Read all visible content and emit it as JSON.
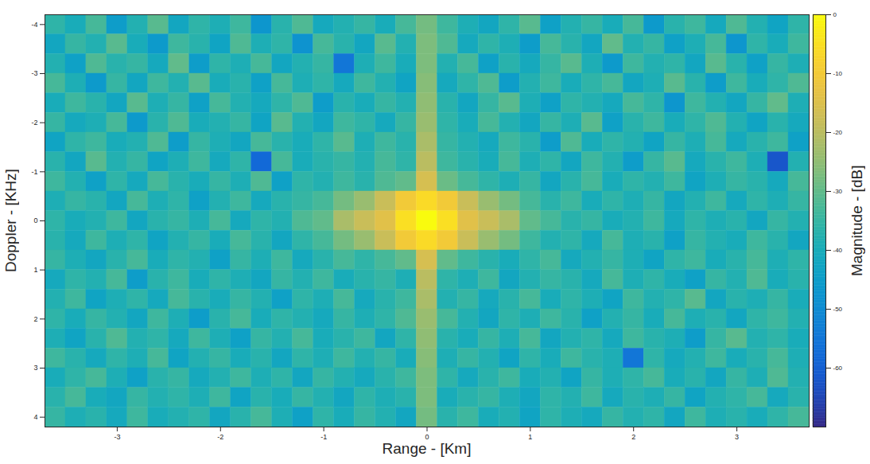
{
  "chart_data": {
    "type": "heatmap",
    "xlabel": "Range - [Km]",
    "ylabel": "Doppler - [KHz]",
    "x": [
      -3.6,
      -3.4,
      -3.2,
      -3.0,
      -2.8,
      -2.6,
      -2.4,
      -2.2,
      -2.0,
      -1.8,
      -1.6,
      -1.4,
      -1.2,
      -1.0,
      -0.8,
      -0.6,
      -0.4,
      -0.2,
      0,
      0.2,
      0.4,
      0.6,
      0.8,
      1.0,
      1.2,
      1.4,
      1.6,
      1.8,
      2.0,
      2.2,
      2.4,
      2.6,
      2.8,
      3.0,
      3.2,
      3.4,
      3.6
    ],
    "y": [
      -4,
      -3.6,
      -3.2,
      -2.8,
      -2.4,
      -2,
      -1.6,
      -1.2,
      -0.8,
      -0.4,
      0,
      0.4,
      0.8,
      1.2,
      1.6,
      2,
      2.4,
      2.8,
      3.2,
      3.6,
      4
    ],
    "z": [
      [
        -36,
        -40,
        -33,
        -45,
        -38,
        -31,
        -42,
        -36,
        -39,
        -34,
        -47,
        -37,
        -32,
        -41,
        -38,
        -35,
        -40,
        -33,
        -28,
        -34,
        -39,
        -42,
        -36,
        -31,
        -44,
        -38,
        -35,
        -40,
        -33,
        -46,
        -37,
        -34,
        -41,
        -32,
        -38,
        -43,
        -36
      ],
      [
        -42,
        -35,
        -38,
        -31,
        -40,
        -46,
        -34,
        -37,
        -43,
        -32,
        -39,
        -36,
        -48,
        -33,
        -37,
        -42,
        -31,
        -38,
        -27,
        -32,
        -41,
        -36,
        -39,
        -45,
        -33,
        -37,
        -42,
        -30,
        -38,
        -35,
        -44,
        -39,
        -33,
        -47,
        -36,
        -40,
        -34
      ],
      [
        -38,
        -44,
        -32,
        -37,
        -35,
        -41,
        -30,
        -45,
        -36,
        -39,
        -33,
        -42,
        -38,
        -35,
        -55,
        -39,
        -34,
        -40,
        -27,
        -38,
        -33,
        -44,
        -37,
        -41,
        -35,
        -31,
        -39,
        -46,
        -34,
        -38,
        -36,
        -42,
        -31,
        -37,
        -44,
        -35,
        -39
      ],
      [
        -33,
        -39,
        -46,
        -35,
        -42,
        -34,
        -38,
        -31,
        -40,
        -37,
        -44,
        -33,
        -39,
        -36,
        -41,
        -34,
        -38,
        -43,
        -26,
        -41,
        -36,
        -32,
        -45,
        -38,
        -34,
        -40,
        -36,
        -33,
        -42,
        -39,
        -31,
        -37,
        -45,
        -34,
        -40,
        -36,
        -32
      ],
      [
        -40,
        -34,
        -37,
        -42,
        -31,
        -39,
        -35,
        -44,
        -33,
        -38,
        -41,
        -36,
        -32,
        -45,
        -37,
        -40,
        -35,
        -38,
        -25,
        -37,
        -42,
        -35,
        -31,
        -39,
        -44,
        -36,
        -38,
        -41,
        -33,
        -36,
        -47,
        -34,
        -38,
        -42,
        -35,
        -30,
        -39
      ],
      [
        -35,
        -41,
        -39,
        -33,
        -46,
        -37,
        -32,
        -40,
        -38,
        -35,
        -43,
        -31,
        -38,
        -42,
        -34,
        -36,
        -41,
        -35,
        -24,
        -36,
        -40,
        -33,
        -38,
        -42,
        -35,
        -39,
        -31,
        -44,
        -37,
        -34,
        -40,
        -36,
        -32,
        -38,
        -43,
        -37,
        -41
      ],
      [
        -43,
        -36,
        -34,
        -40,
        -38,
        -32,
        -45,
        -35,
        -39,
        -42,
        -33,
        -37,
        -40,
        -36,
        -31,
        -39,
        -34,
        -37,
        -22,
        -35,
        -38,
        -41,
        -34,
        -37,
        -45,
        -32,
        -40,
        -36,
        -38,
        -43,
        -35,
        -39,
        -33,
        -41,
        -37,
        -34,
        -44
      ],
      [
        -37,
        -42,
        -31,
        -38,
        -35,
        -43,
        -39,
        -34,
        -41,
        -36,
        -58,
        -33,
        -40,
        -37,
        -35,
        -38,
        -33,
        -36,
        -20,
        -34,
        -37,
        -40,
        -33,
        -39,
        -36,
        -42,
        -34,
        -38,
        -45,
        -35,
        -31,
        -41,
        -37,
        -34,
        -39,
        -62,
        -38
      ],
      [
        -34,
        -38,
        -44,
        -36,
        -41,
        -33,
        -37,
        -40,
        -35,
        -39,
        -32,
        -44,
        -36,
        -38,
        -34,
        -37,
        -32,
        -30,
        -16,
        -29,
        -33,
        -36,
        -39,
        -35,
        -42,
        -37,
        -33,
        -40,
        -36,
        -38,
        -34,
        -43,
        -39,
        -35,
        -37,
        -41,
        -33
      ],
      [
        -39,
        -35,
        -37,
        -42,
        -33,
        -39,
        -36,
        -44,
        -38,
        -34,
        -41,
        -37,
        -35,
        -33,
        -28,
        -24,
        -18,
        -10,
        -6,
        -10,
        -18,
        -24,
        -28,
        -33,
        -37,
        -34,
        -40,
        -36,
        -39,
        -35,
        -42,
        -38,
        -34,
        -41,
        -36,
        -39,
        -35
      ],
      [
        -36,
        -40,
        -38,
        -34,
        -42,
        -37,
        -35,
        -39,
        -33,
        -41,
        -36,
        -38,
        -32,
        -30,
        -22,
        -18,
        -14,
        -5,
        0,
        -5,
        -14,
        -18,
        -22,
        -30,
        -33,
        -37,
        -35,
        -40,
        -38,
        -34,
        -41,
        -36,
        -39,
        -37,
        -42,
        -35,
        -38
      ],
      [
        -37,
        -41,
        -34,
        -39,
        -36,
        -43,
        -38,
        -35,
        -40,
        -33,
        -37,
        -42,
        -36,
        -33,
        -28,
        -24,
        -18,
        -10,
        -6,
        -10,
        -18,
        -24,
        -28,
        -34,
        -38,
        -36,
        -41,
        -33,
        -39,
        -37,
        -44,
        -35,
        -38,
        -40,
        -34,
        -37,
        -42
      ],
      [
        -35,
        -39,
        -42,
        -37,
        -33,
        -40,
        -36,
        -38,
        -44,
        -35,
        -39,
        -34,
        -41,
        -37,
        -33,
        -36,
        -33,
        -30,
        -16,
        -30,
        -34,
        -37,
        -40,
        -36,
        -33,
        -41,
        -38,
        -35,
        -39,
        -43,
        -36,
        -34,
        -40,
        -37,
        -33,
        -39,
        -36
      ],
      [
        -41,
        -36,
        -38,
        -33,
        -45,
        -37,
        -34,
        -40,
        -36,
        -39,
        -42,
        -35,
        -38,
        -34,
        -40,
        -37,
        -35,
        -39,
        -20,
        -36,
        -39,
        -34,
        -42,
        -38,
        -35,
        -37,
        -41,
        -33,
        -39,
        -36,
        -40,
        -44,
        -35,
        -38,
        -32,
        -40,
        -37
      ],
      [
        -38,
        -34,
        -43,
        -39,
        -36,
        -41,
        -33,
        -37,
        -40,
        -35,
        -38,
        -44,
        -36,
        -39,
        -33,
        -41,
        -37,
        -34,
        -22,
        -38,
        -35,
        -41,
        -37,
        -33,
        -40,
        -36,
        -39,
        -43,
        -34,
        -38,
        -36,
        -31,
        -42,
        -37,
        -39,
        -35,
        -40
      ],
      [
        -36,
        -40,
        -35,
        -38,
        -42,
        -34,
        -39,
        -45,
        -37,
        -33,
        -40,
        -36,
        -38,
        -41,
        -35,
        -39,
        -36,
        -32,
        -24,
        -33,
        -38,
        -42,
        -36,
        -39,
        -34,
        -37,
        -44,
        -38,
        -35,
        -40,
        -33,
        -39,
        -37,
        -42,
        -36,
        -34,
        -38
      ],
      [
        -39,
        -43,
        -37,
        -32,
        -38,
        -36,
        -41,
        -34,
        -39,
        -44,
        -35,
        -38,
        -33,
        -40,
        -37,
        -34,
        -42,
        -36,
        -25,
        -37,
        -40,
        -35,
        -39,
        -33,
        -42,
        -38,
        -36,
        -41,
        -34,
        -37,
        -39,
        -45,
        -35,
        -31,
        -38,
        -36,
        -40
      ],
      [
        -34,
        -37,
        -41,
        -36,
        -39,
        -33,
        -43,
        -38,
        -35,
        -40,
        -37,
        -42,
        -36,
        -39,
        -34,
        -38,
        -35,
        -40,
        -26,
        -39,
        -35,
        -38,
        -43,
        -36,
        -40,
        -34,
        -37,
        -39,
        -55,
        -36,
        -41,
        -38,
        -34,
        -40,
        -37,
        -33,
        -39
      ],
      [
        -40,
        -36,
        -33,
        -39,
        -44,
        -37,
        -35,
        -41,
        -38,
        -34,
        -39,
        -36,
        -42,
        -35,
        -38,
        -41,
        -37,
        -34,
        -27,
        -36,
        -41,
        -37,
        -34,
        -40,
        -38,
        -43,
        -35,
        -39,
        -36,
        -33,
        -40,
        -37,
        -42,
        -35,
        -39,
        -32,
        -38
      ],
      [
        -37,
        -33,
        -40,
        -42,
        -35,
        -38,
        -36,
        -39,
        -34,
        -43,
        -37,
        -40,
        -35,
        -38,
        -42,
        -36,
        -39,
        -37,
        -27,
        -40,
        -37,
        -35,
        -39,
        -42,
        -36,
        -38,
        -34,
        -41,
        -37,
        -39,
        -35,
        -43,
        -38,
        -36,
        -33,
        -41,
        -37
      ],
      [
        -35,
        -39,
        -37,
        -41,
        -34,
        -40,
        -38,
        -36,
        -42,
        -37,
        -33,
        -39,
        -44,
        -36,
        -40,
        -35,
        -38,
        -42,
        -28,
        -37,
        -34,
        -40,
        -38,
        -43,
        -36,
        -39,
        -41,
        -35,
        -38,
        -36,
        -42,
        -34,
        -39,
        -37,
        -40,
        -36,
        -33
      ]
    ],
    "xlim": [
      -3.7,
      3.7
    ],
    "xticks": [
      -3,
      -2,
      -1,
      0,
      1,
      2,
      3
    ],
    "ylim": [
      4.2,
      -4.2
    ],
    "yticks": [
      -4,
      -3,
      -2,
      -1,
      0,
      1,
      2,
      3,
      4
    ],
    "colorbar": {
      "label": "Magnitude - [dB]",
      "range": [
        -70,
        0
      ],
      "ticks": [
        0,
        -10,
        -20,
        -30,
        -40,
        -50,
        -60
      ]
    },
    "grid": false
  }
}
